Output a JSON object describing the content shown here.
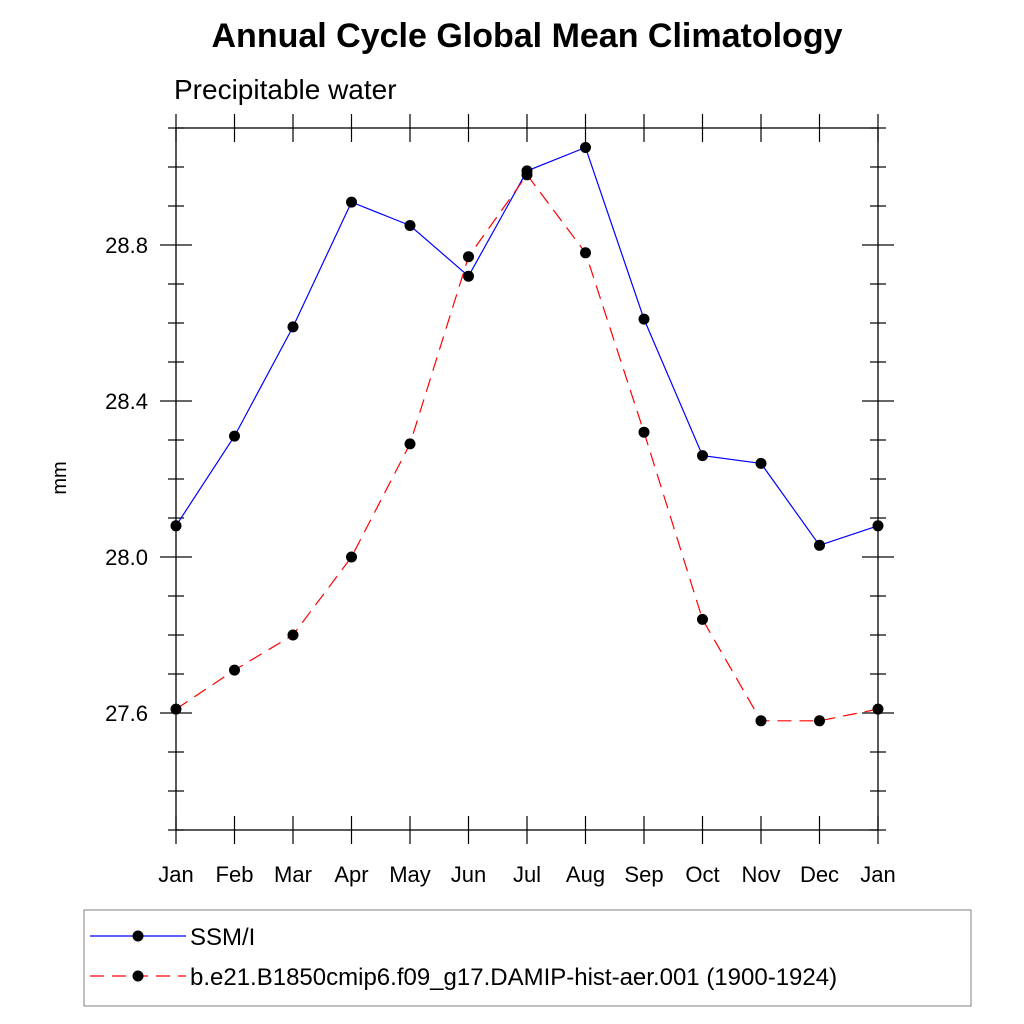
{
  "chart_data": {
    "type": "line",
    "title": "Annual Cycle Global Mean Climatology",
    "subtitle": "Precipitable water",
    "ylabel": "mm",
    "xlabel": "",
    "categories": [
      "Jan",
      "Feb",
      "Mar",
      "Apr",
      "May",
      "Jun",
      "Jul",
      "Aug",
      "Sep",
      "Oct",
      "Nov",
      "Dec",
      "Jan"
    ],
    "ylim": [
      27.3,
      29.1
    ],
    "yticks": [
      "27.6",
      "28.0",
      "28.4",
      "28.8"
    ],
    "ytick_values": [
      27.6,
      28.0,
      28.4,
      28.8
    ],
    "grid": false,
    "legend_position": "bottom",
    "series": [
      {
        "name": "SSM/I",
        "color": "#0000ff",
        "dash": "solid",
        "marker": "filled-circle",
        "values": [
          28.08,
          28.31,
          28.59,
          28.91,
          28.85,
          28.72,
          28.99,
          29.05,
          28.61,
          28.26,
          28.24,
          28.03,
          28.08
        ]
      },
      {
        "name": "b.e21.B1850cmip6.f09_g17.DAMIP-hist-aer.001 (1900-1924)",
        "color": "#ff0000",
        "dash": "dashed",
        "marker": "filled-circle",
        "values": [
          27.61,
          27.71,
          27.8,
          28.0,
          28.29,
          28.77,
          28.98,
          28.78,
          28.32,
          27.84,
          27.58,
          27.58,
          27.61
        ]
      }
    ]
  }
}
